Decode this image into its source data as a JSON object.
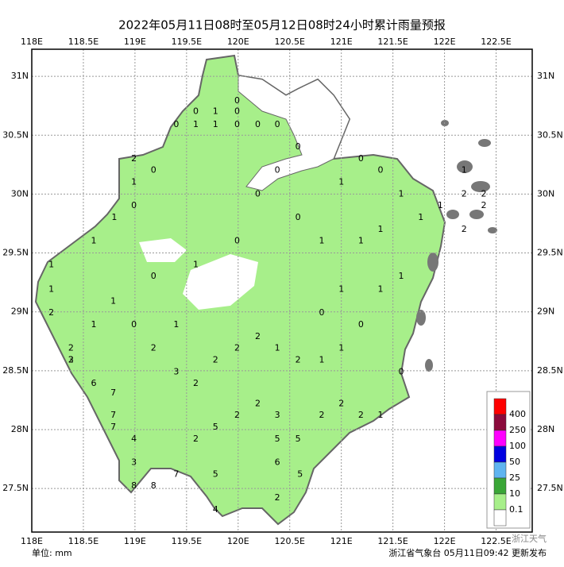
{
  "title": "2022年05月11日08时至05月12日08时24小时累计雨量预报",
  "map": {
    "xlim": [
      118,
      122.85
    ],
    "ylim": [
      27.13,
      31.23
    ],
    "xticks": [
      {
        "value": 118,
        "label": "118E"
      },
      {
        "value": 118.5,
        "label": "118.5E"
      },
      {
        "value": 119,
        "label": "119E"
      },
      {
        "value": 119.5,
        "label": "119.5E"
      },
      {
        "value": 120,
        "label": "120E"
      },
      {
        "value": 120.5,
        "label": "120.5E"
      },
      {
        "value": 121,
        "label": "121E"
      },
      {
        "value": 121.5,
        "label": "121.5E"
      },
      {
        "value": 122,
        "label": "122E"
      },
      {
        "value": 122.5,
        "label": "122.5E"
      }
    ],
    "yticks": [
      {
        "value": 27.5,
        "label": "27.5N"
      },
      {
        "value": 28,
        "label": "28N"
      },
      {
        "value": 28.5,
        "label": "28.5N"
      },
      {
        "value": 29,
        "label": "29N"
      },
      {
        "value": 29.5,
        "label": "29.5N"
      },
      {
        "value": 30,
        "label": "30N"
      },
      {
        "value": 30.5,
        "label": "30.5N"
      },
      {
        "value": 31,
        "label": "31N"
      }
    ],
    "grid": true,
    "stations": [
      [
        119.99,
        30.79,
        0
      ],
      [
        119.59,
        30.7,
        0
      ],
      [
        119.78,
        30.7,
        1
      ],
      [
        119.99,
        30.7,
        0
      ],
      [
        119.4,
        30.59,
        0
      ],
      [
        119.59,
        30.59,
        1
      ],
      [
        119.78,
        30.59,
        1
      ],
      [
        119.99,
        30.59,
        0
      ],
      [
        120.19,
        30.59,
        0
      ],
      [
        120.38,
        30.59,
        0
      ],
      [
        118.99,
        30.3,
        2
      ],
      [
        119.18,
        30.2,
        0
      ],
      [
        118.99,
        30.1,
        1
      ],
      [
        118.99,
        29.9,
        0
      ],
      [
        118.8,
        29.8,
        1
      ],
      [
        118.6,
        29.6,
        1
      ],
      [
        118.19,
        29.4,
        1
      ],
      [
        118.19,
        29.19,
        1
      ],
      [
        118.19,
        28.99,
        2
      ],
      [
        118.38,
        28.69,
        2
      ],
      [
        118.38,
        28.59,
        3
      ],
      [
        118.6,
        28.39,
        6
      ],
      [
        118.79,
        28.31,
        7
      ],
      [
        118.79,
        28.12,
        7
      ],
      [
        118.79,
        28.02,
        7
      ],
      [
        118.99,
        27.92,
        4
      ],
      [
        118.99,
        27.72,
        3
      ],
      [
        118.99,
        27.52,
        8
      ],
      [
        119.18,
        27.52,
        8
      ],
      [
        119.4,
        27.62,
        7
      ],
      [
        119.59,
        27.92,
        2
      ],
      [
        119.78,
        28.02,
        5
      ],
      [
        119.78,
        27.62,
        5
      ],
      [
        119.78,
        27.32,
        4
      ],
      [
        119.99,
        28.12,
        2
      ],
      [
        120.19,
        28.22,
        2
      ],
      [
        120.38,
        28.12,
        3
      ],
      [
        120.38,
        27.92,
        5
      ],
      [
        120.38,
        27.72,
        6
      ],
      [
        120.38,
        27.42,
        2
      ],
      [
        120.58,
        27.92,
        5
      ],
      [
        120.6,
        27.62,
        5
      ],
      [
        120.81,
        28.12,
        2
      ],
      [
        121.0,
        28.22,
        2
      ],
      [
        121.19,
        28.12,
        2
      ],
      [
        121.38,
        28.12,
        1
      ],
      [
        121.58,
        28.49,
        0
      ],
      [
        121.0,
        28.69,
        1
      ],
      [
        120.81,
        28.99,
        0
      ],
      [
        121.0,
        29.19,
        1
      ],
      [
        121.19,
        29.6,
        1
      ],
      [
        121.38,
        29.7,
        1
      ],
      [
        121.58,
        30.0,
        1
      ],
      [
        121.77,
        29.8,
        1
      ],
      [
        121.96,
        29.9,
        1
      ],
      [
        122.19,
        30.0,
        2
      ],
      [
        122.38,
        30.0,
        2
      ],
      [
        122.19,
        29.7,
        2
      ],
      [
        122.19,
        30.2,
        1
      ],
      [
        122.38,
        29.9,
        2
      ],
      [
        120.58,
        30.4,
        0
      ],
      [
        120.38,
        30.2,
        0
      ],
      [
        120.19,
        30.0,
        0
      ],
      [
        119.99,
        29.6,
        0
      ],
      [
        119.59,
        29.4,
        1
      ],
      [
        119.18,
        29.3,
        0
      ],
      [
        118.79,
        29.09,
        1
      ],
      [
        118.6,
        28.89,
        1
      ],
      [
        119.18,
        28.69,
        2
      ],
      [
        119.4,
        28.49,
        3
      ],
      [
        119.59,
        28.39,
        2
      ],
      [
        119.78,
        28.59,
        2
      ],
      [
        119.99,
        28.69,
        2
      ],
      [
        120.19,
        28.79,
        2
      ],
      [
        120.38,
        28.69,
        1
      ],
      [
        120.58,
        28.59,
        2
      ],
      [
        120.81,
        28.59,
        1
      ],
      [
        121.19,
        28.89,
        0
      ],
      [
        121.38,
        29.19,
        1
      ],
      [
        121.58,
        29.3,
        1
      ],
      [
        120.81,
        29.6,
        1
      ],
      [
        120.58,
        29.8,
        0
      ],
      [
        121.0,
        30.1,
        1
      ],
      [
        121.38,
        30.2,
        0
      ],
      [
        121.19,
        30.3,
        0
      ],
      [
        119.4,
        28.89,
        1
      ],
      [
        118.99,
        28.89,
        0
      ],
      [
        118.38,
        28.59,
        2
      ]
    ],
    "legend": {
      "colors": [
        "#ff0000",
        "#8b0a3c",
        "#ff00ff",
        "#0000e0",
        "#5fb4f0",
        "#3aa637",
        "#a7ef8a",
        "#ffffff"
      ],
      "labels": [
        "400",
        "250",
        "100",
        "50",
        "25",
        "10",
        "0.1"
      ]
    }
  },
  "unit": "单位: mm",
  "issuer": "浙江省气象台 05月11日09:42 更新发布",
  "watermark": "浙江天气"
}
